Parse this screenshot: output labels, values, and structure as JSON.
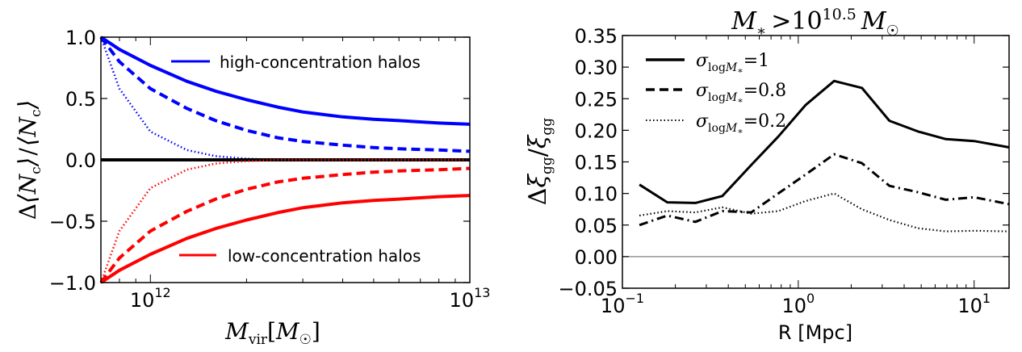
{
  "chart_data": [
    {
      "type": "line",
      "title": "",
      "xlabel": "M_vir [M_☉]",
      "ylabel": "Δ⟨N_c⟩ / ⟨N_c⟩",
      "xscale": "log",
      "xlim": [
        700000000000.0,
        10000000000000.0
      ],
      "ylim": [
        -1.0,
        1.0
      ],
      "x_ticklabels": [
        "10^12",
        "10^13"
      ],
      "y_ticklabels": [
        "−1.0",
        "−0.5",
        "0.0",
        "0.5",
        "1.0"
      ],
      "legend_placement": "split: top-right and bottom-right",
      "x": [
        700000000000.0,
        800000000000.0,
        1000000000000.0,
        1300000000000.0,
        1600000000000.0,
        2000000000000.0,
        2500000000000.0,
        3000000000000.0,
        4000000000000.0,
        5000000000000.0,
        6000000000000.0,
        8000000000000.0,
        10000000000000.0
      ],
      "series": [
        {
          "legend": "high-concentration halos",
          "color": "#0000ff",
          "style": "solid",
          "values": [
            1.0,
            0.9,
            0.77,
            0.64,
            0.56,
            0.49,
            0.43,
            0.39,
            0.35,
            0.33,
            0.32,
            0.3,
            0.29
          ]
        },
        {
          "color": "#0000ff",
          "style": "dashed",
          "values": [
            1.0,
            0.8,
            0.58,
            0.42,
            0.32,
            0.24,
            0.18,
            0.15,
            0.12,
            0.1,
            0.09,
            0.08,
            0.07
          ]
        },
        {
          "color": "#0000ff",
          "style": "dotted",
          "values": [
            1.0,
            0.58,
            0.23,
            0.08,
            0.03,
            0.01,
            0.0,
            0.0,
            0.0,
            0.0,
            0.0,
            0.0,
            0.0
          ]
        },
        {
          "color": "#000000",
          "style": "solid",
          "values": [
            0,
            0,
            0,
            0,
            0,
            0,
            0,
            0,
            0,
            0,
            0,
            0,
            0
          ]
        },
        {
          "color": "#ff0000",
          "style": "dotted",
          "values": [
            -1.0,
            -0.58,
            -0.23,
            -0.08,
            -0.03,
            -0.01,
            0.0,
            0.0,
            0.0,
            0.0,
            0.0,
            0.0,
            0.0
          ]
        },
        {
          "color": "#ff0000",
          "style": "dashed",
          "values": [
            -1.0,
            -0.8,
            -0.58,
            -0.42,
            -0.32,
            -0.24,
            -0.18,
            -0.15,
            -0.12,
            -0.1,
            -0.09,
            -0.08,
            -0.07
          ]
        },
        {
          "legend": "low-concentration halos",
          "color": "#ff0000",
          "style": "solid",
          "values": [
            -1.0,
            -0.9,
            -0.77,
            -0.64,
            -0.56,
            -0.49,
            -0.43,
            -0.39,
            -0.35,
            -0.33,
            -0.32,
            -0.3,
            -0.29
          ]
        }
      ]
    },
    {
      "type": "line",
      "title": "M_* > 10^10.5 M_☉",
      "xlabel": "R [Mpc]",
      "ylabel": "Δξ_gg / ξ_gg",
      "xscale": "log",
      "xlim": [
        0.1,
        15.8
      ],
      "ylim": [
        -0.05,
        0.35
      ],
      "x_ticklabels": [
        "10^-1",
        "10^0",
        "10^1"
      ],
      "y_ticklabels": [
        "−0.05",
        "0.00",
        "0.05",
        "0.10",
        "0.15",
        "0.20",
        "0.25",
        "0.30",
        "0.35"
      ],
      "legend_placement": "top-left",
      "reference_line": {
        "y": 0.0,
        "color": "#808080"
      },
      "series": [
        {
          "legend": "σ_logM* = 1",
          "color": "#000000",
          "style": "solid",
          "x": [
            0.125,
            0.18,
            0.26,
            0.37,
            0.54,
            0.77,
            1.1,
            1.6,
            2.3,
            3.3,
            4.8,
            6.9,
            10.0,
            15.8
          ],
          "values": [
            0.114,
            0.086,
            0.085,
            0.096,
            0.145,
            0.19,
            0.24,
            0.278,
            0.267,
            0.215,
            0.198,
            0.186,
            0.183,
            0.173
          ]
        },
        {
          "legend": "σ_logM* = 0.8",
          "color": "#000000",
          "style": "dashdot",
          "x": [
            0.125,
            0.18,
            0.26,
            0.37,
            0.54,
            0.77,
            1.1,
            1.6,
            2.3,
            3.3,
            4.8,
            6.9,
            10.0,
            15.8
          ],
          "values": [
            0.05,
            0.065,
            0.055,
            0.072,
            0.07,
            0.1,
            0.13,
            0.162,
            0.148,
            0.112,
            0.102,
            0.09,
            0.094,
            0.083
          ]
        },
        {
          "legend": "σ_logM* = 0.2",
          "color": "#000000",
          "style": "dotted",
          "x": [
            0.125,
            0.18,
            0.26,
            0.37,
            0.54,
            0.77,
            1.1,
            1.6,
            2.3,
            3.3,
            4.8,
            6.9,
            10.0,
            15.8
          ],
          "values": [
            0.065,
            0.072,
            0.07,
            0.078,
            0.068,
            0.072,
            0.088,
            0.1,
            0.075,
            0.058,
            0.045,
            0.04,
            0.041,
            0.04
          ]
        }
      ]
    }
  ],
  "panels": {
    "left": {
      "y_ticks": [
        {
          "v": -1.0,
          "label": "−1.0"
        },
        {
          "v": -0.5,
          "label": "−0.5"
        },
        {
          "v": 0.0,
          "label": "0.0"
        },
        {
          "v": 0.5,
          "label": "0.5"
        },
        {
          "v": 1.0,
          "label": "1.0"
        }
      ],
      "x_ticks": [
        {
          "v": 1000000000000.0,
          "base": "10",
          "exp": "12"
        },
        {
          "v": 10000000000000.0,
          "base": "10",
          "exp": "13"
        }
      ],
      "legend": {
        "high": "high-concentration halos",
        "low": "low-concentration halos"
      },
      "ylabel": {
        "delta": "Δ",
        "n": "N",
        "sub": "c",
        "lang": "⟨",
        "rang": "⟩",
        "slash": "/"
      },
      "xlabel": {
        "m": "M",
        "sub": "vir",
        "lb": "[",
        "msun": "M",
        "sun": "☉",
        "rb": "]"
      }
    },
    "right": {
      "y_ticks": [
        {
          "v": -0.05,
          "label": "−0.05"
        },
        {
          "v": 0.0,
          "label": "0.00"
        },
        {
          "v": 0.05,
          "label": "0.05"
        },
        {
          "v": 0.1,
          "label": "0.10"
        },
        {
          "v": 0.15,
          "label": "0.15"
        },
        {
          "v": 0.2,
          "label": "0.20"
        },
        {
          "v": 0.25,
          "label": "0.25"
        },
        {
          "v": 0.3,
          "label": "0.30"
        },
        {
          "v": 0.35,
          "label": "0.35"
        }
      ],
      "x_ticks": [
        {
          "v": 0.1,
          "base": "10",
          "exp": "−1"
        },
        {
          "v": 1.0,
          "base": "10",
          "exp": "0"
        },
        {
          "v": 10.0,
          "base": "10",
          "exp": "1"
        }
      ],
      "title": {
        "m": "M",
        "star": "∗",
        "gt": ">",
        "base": "10",
        "exp": "10.5",
        "msun": "M",
        "sun": "☉"
      },
      "xlabel": "R [Mpc]",
      "ylabel": {
        "delta": "Δ",
        "xi": "ξ",
        "sub": "gg",
        "slash": "/"
      },
      "legend": [
        {
          "sigma": "σ",
          "sub": "log",
          "m": "M",
          "star": "∗",
          "eq": "=1"
        },
        {
          "sigma": "σ",
          "sub": "log",
          "m": "M",
          "star": "∗",
          "eq": "=0.8"
        },
        {
          "sigma": "σ",
          "sub": "log",
          "m": "M",
          "star": "∗",
          "eq": "=0.2"
        }
      ]
    }
  }
}
